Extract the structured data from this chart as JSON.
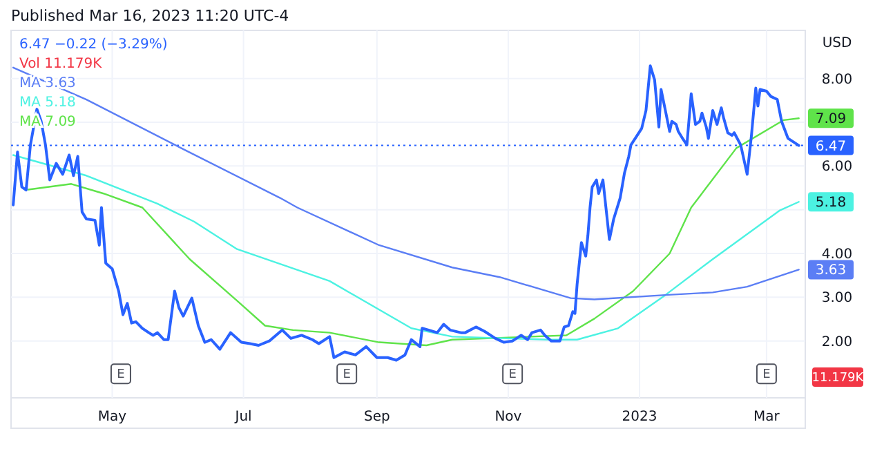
{
  "chart_data": {
    "type": "line",
    "title": "Published Mar 16, 2023 11:20 UTC-4",
    "ylabel": "USD",
    "xlim": [
      "2022-03-15",
      "2023-03-19"
    ],
    "xticks": [
      {
        "value": "2022-05-01",
        "label": "May"
      },
      {
        "value": "2022-07-01",
        "label": "Jul"
      },
      {
        "value": "2022-09-01",
        "label": "Sep"
      },
      {
        "value": "2022-11-01",
        "label": "Nov"
      },
      {
        "value": "2023-01-01",
        "label": "2023"
      },
      {
        "value": "2023-03-01",
        "label": "Mar"
      }
    ],
    "ylim": [
      0.7,
      9.1
    ],
    "yticks": [
      {
        "value": 2,
        "label": "2.00"
      },
      {
        "value": 3,
        "label": "3.00"
      },
      {
        "value": 4,
        "label": "4.00"
      },
      {
        "value": 5,
        "label": null
      },
      {
        "value": 6,
        "label": "6.00"
      },
      {
        "value": 7,
        "label": null
      },
      {
        "value": 8,
        "label": "8.00"
      }
    ],
    "grid": true,
    "legend": "top left",
    "marker": "none",
    "line_style": "solid",
    "ref_lines": [
      {
        "axis": "y",
        "value": 6.47,
        "color": "#2962ff",
        "line_style": "dotted"
      }
    ],
    "annotations": [
      "6.47 −0.22 (−3.29%)",
      "Vol 11.179K",
      {
        "text": "E",
        "x": "2022-05-05",
        "y": 1.25
      },
      {
        "text": "E",
        "x": "2022-08-18",
        "y": 1.25
      },
      {
        "text": "E",
        "x": "2022-11-03",
        "y": 1.25
      },
      {
        "text": "E",
        "x": "2023-03-01",
        "y": 1.25
      },
      "11.179K"
    ],
    "series": [
      {
        "color": "#2962ff",
        "x": [
          "2022-03-16",
          "2022-03-18",
          "2022-03-20",
          "2022-03-22",
          "2022-03-24",
          "2022-03-27",
          "2022-03-29",
          "2022-03-31",
          "2022-04-02",
          "2022-04-05",
          "2022-04-08",
          "2022-04-11",
          "2022-04-13",
          "2022-04-15",
          "2022-04-17",
          "2022-04-19",
          "2022-04-23",
          "2022-04-25",
          "2022-04-26",
          "2022-04-28",
          "2022-05-01",
          "2022-05-04",
          "2022-05-06",
          "2022-05-08",
          "2022-05-10",
          "2022-05-12",
          "2022-05-15",
          "2022-05-18",
          "2022-05-20",
          "2022-05-22",
          "2022-05-25",
          "2022-05-27",
          "2022-05-30",
          "2022-06-01",
          "2022-06-03",
          "2022-06-07",
          "2022-06-10",
          "2022-06-13",
          "2022-06-16",
          "2022-06-20",
          "2022-06-25",
          "2022-06-30",
          "2022-07-04",
          "2022-07-08",
          "2022-07-13",
          "2022-07-19",
          "2022-07-23",
          "2022-07-28",
          "2022-08-02",
          "2022-08-05",
          "2022-08-10",
          "2022-08-12",
          "2022-08-17",
          "2022-08-22",
          "2022-08-27",
          "2022-09-01",
          "2022-09-06",
          "2022-09-10",
          "2022-09-14",
          "2022-09-17",
          "2022-09-21",
          "2022-09-22",
          "2022-09-25",
          "2022-09-29",
          "2022-10-02",
          "2022-10-05",
          "2022-10-10",
          "2022-10-12",
          "2022-10-17",
          "2022-10-21",
          "2022-10-26",
          "2022-10-30",
          "2022-11-03",
          "2022-11-07",
          "2022-11-10",
          "2022-11-12",
          "2022-11-16",
          "2022-11-18",
          "2022-11-21",
          "2022-11-25",
          "2022-11-27",
          "2022-11-29",
          "2022-12-01",
          "2022-12-02",
          "2022-12-03",
          "2022-12-05",
          "2022-12-07",
          "2022-12-08",
          "2022-12-09",
          "2022-12-10",
          "2022-12-12",
          "2022-12-13",
          "2022-12-15",
          "2022-12-18",
          "2022-12-20",
          "2022-12-23",
          "2022-12-25",
          "2022-12-27",
          "2022-12-28",
          "2022-12-30",
          "2023-01-02",
          "2023-01-04",
          "2023-01-06",
          "2023-01-08",
          "2023-01-10",
          "2023-01-11",
          "2023-01-13",
          "2023-01-15",
          "2023-01-16",
          "2023-01-18",
          "2023-01-19",
          "2023-01-21",
          "2023-01-23",
          "2023-01-25",
          "2023-01-27",
          "2023-01-29",
          "2023-01-30",
          "2023-02-01",
          "2023-02-02",
          "2023-02-04",
          "2023-02-06",
          "2023-02-08",
          "2023-02-09",
          "2023-02-11",
          "2023-02-13",
          "2023-02-14",
          "2023-02-17",
          "2023-02-20",
          "2023-02-22",
          "2023-02-24",
          "2023-02-25",
          "2023-02-26",
          "2023-03-01",
          "2023-03-03",
          "2023-03-06",
          "2023-03-08",
          "2023-03-11",
          "2023-03-16"
        ],
        "values": [
          5.11,
          6.32,
          5.52,
          5.45,
          6.48,
          7.3,
          7.02,
          6.48,
          5.68,
          6.06,
          5.81,
          6.25,
          5.78,
          6.22,
          4.95,
          4.79,
          4.76,
          4.19,
          5.05,
          3.78,
          3.65,
          3.14,
          2.6,
          2.86,
          2.41,
          2.44,
          2.29,
          2.19,
          2.13,
          2.19,
          2.03,
          2.03,
          3.14,
          2.76,
          2.57,
          2.98,
          2.35,
          1.97,
          2.03,
          1.81,
          2.19,
          1.97,
          1.94,
          1.9,
          2.0,
          2.25,
          2.06,
          2.13,
          2.03,
          1.94,
          2.1,
          1.62,
          1.75,
          1.68,
          1.87,
          1.62,
          1.62,
          1.56,
          1.68,
          2.03,
          1.87,
          2.29,
          2.25,
          2.19,
          2.38,
          2.25,
          2.19,
          2.19,
          2.32,
          2.22,
          2.06,
          1.97,
          2.0,
          2.13,
          2.03,
          2.19,
          2.25,
          2.13,
          2.0,
          2.0,
          2.32,
          2.35,
          2.67,
          2.63,
          3.3,
          4.25,
          3.94,
          4.41,
          5.05,
          5.52,
          5.68,
          5.37,
          5.68,
          4.32,
          4.79,
          5.27,
          5.84,
          6.22,
          6.48,
          6.63,
          6.86,
          7.27,
          8.29,
          7.97,
          6.89,
          7.75,
          7.27,
          6.79,
          7.02,
          6.95,
          6.79,
          6.63,
          6.48,
          7.65,
          6.95,
          7.02,
          7.21,
          6.89,
          6.63,
          7.27,
          6.95,
          7.33,
          7.11,
          6.76,
          6.7,
          6.76,
          6.48,
          5.81,
          6.7,
          7.78,
          7.37,
          7.75,
          7.71,
          7.59,
          7.52,
          7.02,
          6.63,
          6.47
        ],
        "value_labels": [
          null,
          null,
          null,
          null,
          null,
          null,
          null,
          null,
          null,
          null,
          null,
          null,
          null,
          null,
          null,
          null,
          null,
          null,
          null,
          null,
          null,
          null,
          null,
          null,
          null,
          null,
          null,
          null,
          null,
          null,
          null,
          null,
          null,
          null,
          null,
          null,
          null,
          null,
          null,
          null,
          null,
          null,
          null,
          null,
          null,
          null,
          null,
          null,
          null,
          null,
          null,
          null,
          null,
          null,
          null,
          null,
          null,
          null,
          null,
          null,
          null,
          null,
          null,
          null,
          null,
          null,
          null,
          null,
          null,
          null,
          null,
          null,
          null,
          null,
          null,
          null,
          null,
          null,
          null,
          null,
          null,
          null,
          null,
          null,
          null,
          null,
          null,
          null,
          null,
          null,
          null,
          null,
          null,
          null,
          null,
          null,
          null,
          null,
          null,
          null,
          null,
          null,
          null,
          null,
          null,
          null,
          null,
          null,
          null,
          null,
          null,
          null,
          null,
          null,
          null,
          null,
          null,
          null,
          null,
          null,
          null,
          null,
          null,
          null,
          null,
          null,
          null,
          null,
          null,
          null,
          null,
          null,
          null,
          null,
          null,
          null,
          null,
          "6.47"
        ]
      },
      {
        "name": "MA 3.63",
        "color": "#5b7ef5",
        "x": [
          "2022-03-16",
          "2022-04-19",
          "2022-06-02",
          "2022-07-18",
          "2022-07-26",
          "2022-09-02",
          "2022-10-06",
          "2022-10-28",
          "2022-11-30",
          "2022-12-11",
          "2023-01-13",
          "2023-02-04",
          "2023-02-20",
          "2023-03-16"
        ],
        "values": [
          8.25,
          7.52,
          6.41,
          5.27,
          5.05,
          4.19,
          3.68,
          3.46,
          2.98,
          2.95,
          3.05,
          3.11,
          3.24,
          3.63
        ],
        "value_labels": [
          null,
          null,
          null,
          null,
          null,
          null,
          null,
          null,
          null,
          null,
          null,
          null,
          null,
          "3.63"
        ]
      },
      {
        "name": "MA 5.18",
        "color": "#4cf2e2",
        "x": [
          "2022-03-16",
          "2022-04-19",
          "2022-05-22",
          "2022-06-08",
          "2022-06-28",
          "2022-08-10",
          "2022-09-17",
          "2022-10-06",
          "2022-11-19",
          "2022-12-03",
          "2022-12-22",
          "2023-01-13",
          "2023-02-04",
          "2023-03-07",
          "2023-03-16"
        ],
        "values": [
          6.25,
          5.78,
          5.14,
          4.73,
          4.1,
          3.37,
          2.29,
          2.1,
          2.03,
          2.03,
          2.29,
          3.05,
          3.87,
          4.98,
          5.18
        ],
        "value_labels": [
          null,
          null,
          null,
          null,
          null,
          null,
          null,
          null,
          null,
          null,
          null,
          null,
          null,
          null,
          "5.18"
        ]
      },
      {
        "name": "MA 7.09",
        "color": "#5fe34a",
        "x": [
          "2022-03-23",
          "2022-04-12",
          "2022-04-27",
          "2022-05-15",
          "2022-06-06",
          "2022-06-28",
          "2022-07-11",
          "2022-07-24",
          "2022-08-10",
          "2022-09-02",
          "2022-09-24",
          "2022-10-06",
          "2022-11-28",
          "2022-12-11",
          "2022-12-29",
          "2023-01-15",
          "2023-01-25",
          "2023-02-15",
          "2023-03-09",
          "2023-03-16"
        ],
        "values": [
          5.46,
          5.59,
          5.37,
          5.05,
          3.87,
          2.92,
          2.35,
          2.25,
          2.19,
          1.97,
          1.9,
          2.03,
          2.13,
          2.51,
          3.14,
          4.0,
          5.05,
          6.41,
          7.05,
          7.09
        ],
        "value_labels": [
          null,
          null,
          null,
          null,
          null,
          null,
          null,
          null,
          null,
          null,
          null,
          null,
          null,
          null,
          null,
          null,
          null,
          null,
          null,
          "7.09"
        ]
      }
    ]
  }
}
